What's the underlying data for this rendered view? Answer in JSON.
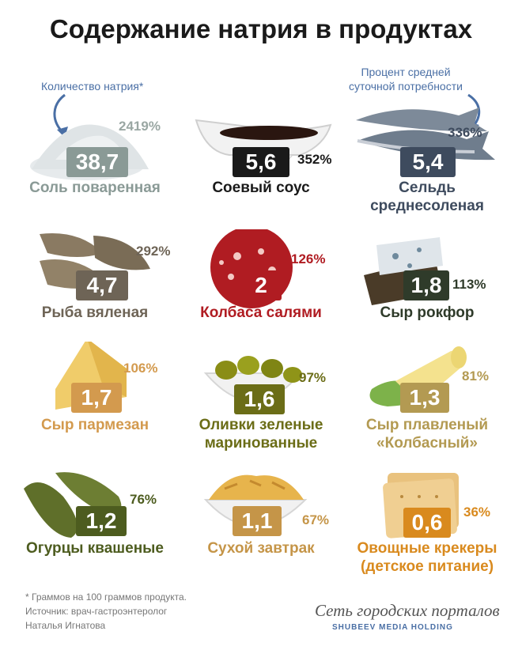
{
  "title": "Содержание натрия в продуктах",
  "notes": {
    "left": "Количество натрия*",
    "right_line1": "Процент средней",
    "right_line2": "суточной потребности"
  },
  "items": [
    {
      "value": "38,7",
      "percent": "2419%",
      "name1": "Соль поваренная",
      "name2": "",
      "color": "#8a9a96"
    },
    {
      "value": "5,6",
      "percent": "352%",
      "name1": "Соевый соус",
      "name2": "",
      "color": "#1a1a1a"
    },
    {
      "value": "5,4",
      "percent": "336%",
      "name1": "Сельдь",
      "name2": "среднесоленая",
      "color": "#3e4b5e"
    },
    {
      "value": "4,7",
      "percent": "292%",
      "name1": "Рыба вяленая",
      "name2": "",
      "color": "#6e6456"
    },
    {
      "value": "2",
      "percent": "126%",
      "name1": "Колбаса салями",
      "name2": "",
      "color": "#b01c22"
    },
    {
      "value": "1,8",
      "percent": "113%",
      "name1": "Сыр рокфор",
      "name2": "",
      "color": "#2f3b2a"
    },
    {
      "value": "1,7",
      "percent": "106%",
      "name1": "Сыр пармезан",
      "name2": "",
      "color": "#d39a4e"
    },
    {
      "value": "1,6",
      "percent": "97%",
      "name1": "Оливки зеленые",
      "name2": "маринованные",
      "color": "#6b6d17"
    },
    {
      "value": "1,3",
      "percent": "81%",
      "name1": "Сыр плавленый",
      "name2": "«Колбасный»",
      "color": "#b39a52"
    },
    {
      "value": "1,2",
      "percent": "76%",
      "name1": "Огурцы квашеные",
      "name2": "",
      "color": "#4d5c1f"
    },
    {
      "value": "1,1",
      "percent": "67%",
      "name1": "Сухой завтрак",
      "name2": "",
      "color": "#c59548"
    },
    {
      "value": "0,6",
      "percent": "36%",
      "name1": "Овощные крекеры",
      "name2": "(детское питание)",
      "color": "#d98a1e"
    }
  ],
  "footnote": {
    "line1": "* Граммов на 100 граммов продукта.",
    "line2": "Источник: врач-гастроэнтеролог",
    "line3": "Наталья Игнатова"
  },
  "brand": {
    "line1": "Сеть городских порталов",
    "line2": "SHUBEEV MEDIA HOLDING"
  }
}
